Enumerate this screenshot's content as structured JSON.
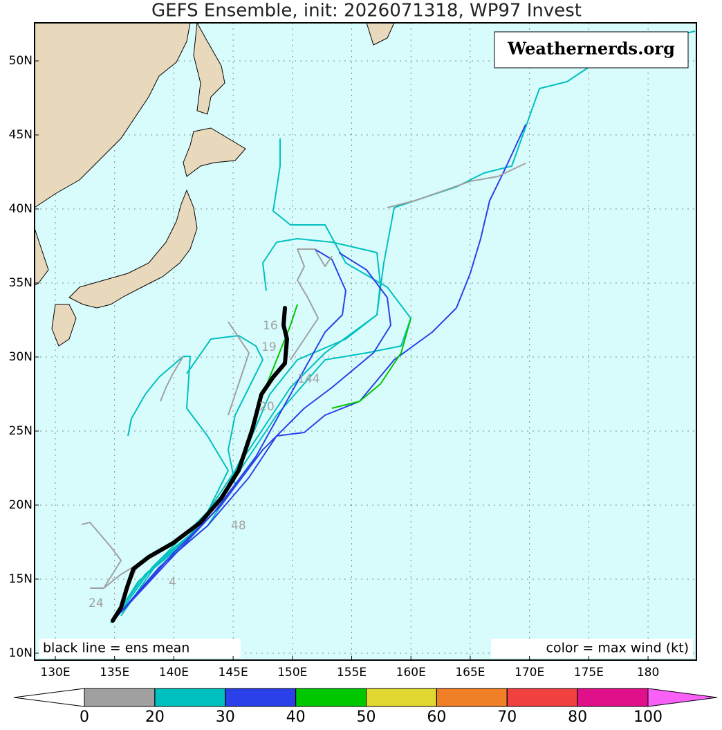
{
  "title": "GEFS Ensemble, init: 2026071318, WP97 Invest",
  "watermark": "Weathernerds.org",
  "note_left": "black line = ens mean",
  "note_right": "color = max wind (kt)",
  "map": {
    "xlim": [
      128.25,
      184.08
    ],
    "ylim": [
      9.53,
      52.57
    ],
    "xticks": [
      {
        "value": 130,
        "label": "130E"
      },
      {
        "value": 135,
        "label": "135E"
      },
      {
        "value": 140,
        "label": "140E"
      },
      {
        "value": 145,
        "label": "145E"
      },
      {
        "value": 150,
        "label": "150E"
      },
      {
        "value": 155,
        "label": "155E"
      },
      {
        "value": 160,
        "label": "160E"
      },
      {
        "value": 165,
        "label": "165E"
      },
      {
        "value": 170,
        "label": "170E"
      },
      {
        "value": 175,
        "label": "175E"
      },
      {
        "value": 180,
        "label": "180"
      }
    ],
    "yticks": [
      {
        "value": 10,
        "label": "10N"
      },
      {
        "value": 15,
        "label": "15N"
      },
      {
        "value": 20,
        "label": "20N"
      },
      {
        "value": 25,
        "label": "25N"
      },
      {
        "value": 30,
        "label": "30N"
      },
      {
        "value": 35,
        "label": "35N"
      },
      {
        "value": 40,
        "label": "40N"
      },
      {
        "value": 45,
        "label": "45N"
      },
      {
        "value": 50,
        "label": "50N"
      }
    ],
    "grid": true,
    "track_labels": [
      "16",
      "19",
      "144",
      "20",
      "48",
      "24",
      "4"
    ]
  },
  "colorbar": {
    "ticks": [
      0,
      20,
      30,
      40,
      50,
      60,
      70,
      80,
      100
    ],
    "colors": [
      "#a0a0a0",
      "#00c0c0",
      "#2a40e8",
      "#00c800",
      "#e0d830",
      "#f08028",
      "#f04040",
      "#e0108a"
    ],
    "under_color": "#ffffff",
    "over_color": "#f860f8"
  }
}
